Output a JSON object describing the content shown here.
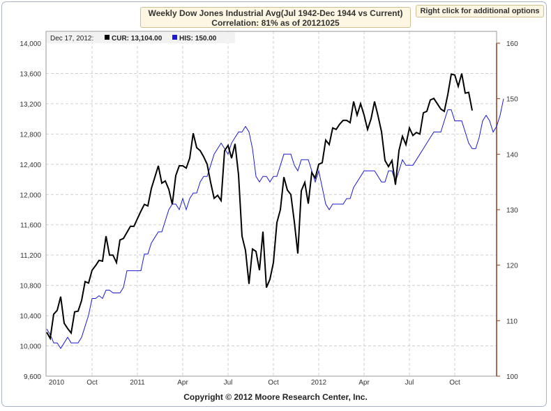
{
  "header": {
    "title_line1": "Weekly Dow Jones Industrial Avg(Jul 1942-Dec 1944 vs Current)",
    "title_line2": "Correlation: 81% as of 20121025",
    "options_button": "Right click for additional options"
  },
  "legend": {
    "date": "Dec 17, 2012:",
    "cur_label": "CUR: 13,104.00",
    "his_label": "HIS: 150.00"
  },
  "footer": {
    "copyright": "Copyright © 2012 Moore Research Center, Inc."
  },
  "colors": {
    "cur": "#000000",
    "his": "#1a1ad6",
    "right_axis": "#8b3a1a",
    "grid": "#cfcfcf"
  },
  "chart_data": {
    "type": "line",
    "x_ticks": [
      "2010",
      "Oct",
      "2011",
      "Apr",
      "Jul",
      "Oct",
      "2012",
      "Apr",
      "Jul",
      "Oct"
    ],
    "x_tick_weeks": [
      0,
      13,
      26,
      39,
      52,
      65,
      78,
      91,
      104,
      117
    ],
    "y_left_ticks": [
      "9,600",
      "10,000",
      "10,400",
      "10,800",
      "11,200",
      "11,600",
      "12,000",
      "12,400",
      "12,800",
      "13,200",
      "13,600",
      "14,000"
    ],
    "y_left_range": [
      9600,
      14000
    ],
    "y_right_ticks": [
      "100",
      "110",
      "120",
      "130",
      "140",
      "150",
      "160"
    ],
    "y_right_range": [
      100,
      160
    ],
    "grid": true,
    "series": [
      {
        "name": "CUR",
        "axis": "left",
        "values": [
          10180,
          10100,
          10420,
          10470,
          10650,
          10300,
          10230,
          10170,
          10450,
          10460,
          10600,
          10850,
          10830,
          11000,
          11060,
          11130,
          11120,
          11450,
          11200,
          11200,
          11100,
          11400,
          11420,
          11500,
          11580,
          11580,
          11680,
          11780,
          11870,
          11850,
          12080,
          12230,
          12380,
          12150,
          12180,
          12070,
          11870,
          12250,
          12380,
          12380,
          12350,
          12480,
          12810,
          12620,
          12580,
          12500,
          12400,
          12160,
          11950,
          11990,
          11920,
          12580,
          12650,
          12480,
          12670,
          12260,
          11450,
          11260,
          10820,
          11280,
          11250,
          11000,
          11510,
          10770,
          10880,
          11100,
          11630,
          11800,
          12230,
          12060,
          12000,
          11640,
          11220,
          12050,
          12160,
          11880,
          12290,
          12220,
          12400,
          12420,
          12720,
          12660,
          12880,
          12860,
          12930,
          12980,
          12980,
          12950,
          13230,
          13050,
          13200,
          13050,
          12860,
          13000,
          13230,
          13040,
          12830,
          12450,
          12370,
          12450,
          12130,
          12580,
          12770,
          12660,
          12880,
          12780,
          12820,
          12800,
          13080,
          13100,
          13250,
          13270,
          13200,
          13130,
          13100,
          13320,
          13590,
          13580,
          13430,
          13600,
          13340,
          13350,
          13110
        ]
      },
      {
        "name": "HIS",
        "axis": "right",
        "values": [
          108.5,
          107.5,
          106,
          106,
          105,
          106,
          107,
          106,
          106,
          106,
          107,
          109,
          111,
          114,
          114,
          114.5,
          114,
          115.5,
          115.5,
          115,
          115,
          115,
          116,
          119,
          119,
          119,
          119,
          119,
          122,
          122,
          124,
          125,
          126,
          126,
          128,
          130,
          131,
          131,
          130,
          132,
          130,
          132,
          133,
          133,
          135,
          136,
          136,
          138,
          140,
          141,
          142,
          141,
          140,
          142,
          143,
          144,
          144,
          145,
          144,
          141,
          136,
          135,
          136,
          136,
          135,
          136,
          136,
          138,
          140,
          140,
          140,
          138,
          137,
          139,
          139,
          139,
          137,
          135,
          137,
          134,
          131,
          130,
          131,
          131,
          131,
          131,
          132,
          132,
          134,
          135,
          136,
          137,
          137,
          137,
          137,
          136,
          135,
          135,
          137,
          137,
          135,
          137,
          139,
          138,
          138,
          138,
          139,
          140,
          141,
          142,
          143,
          144,
          144,
          144,
          146,
          148,
          148,
          146,
          146,
          146,
          144,
          142,
          141,
          141,
          143,
          146,
          147,
          146,
          144,
          145,
          147,
          150
        ]
      }
    ]
  }
}
